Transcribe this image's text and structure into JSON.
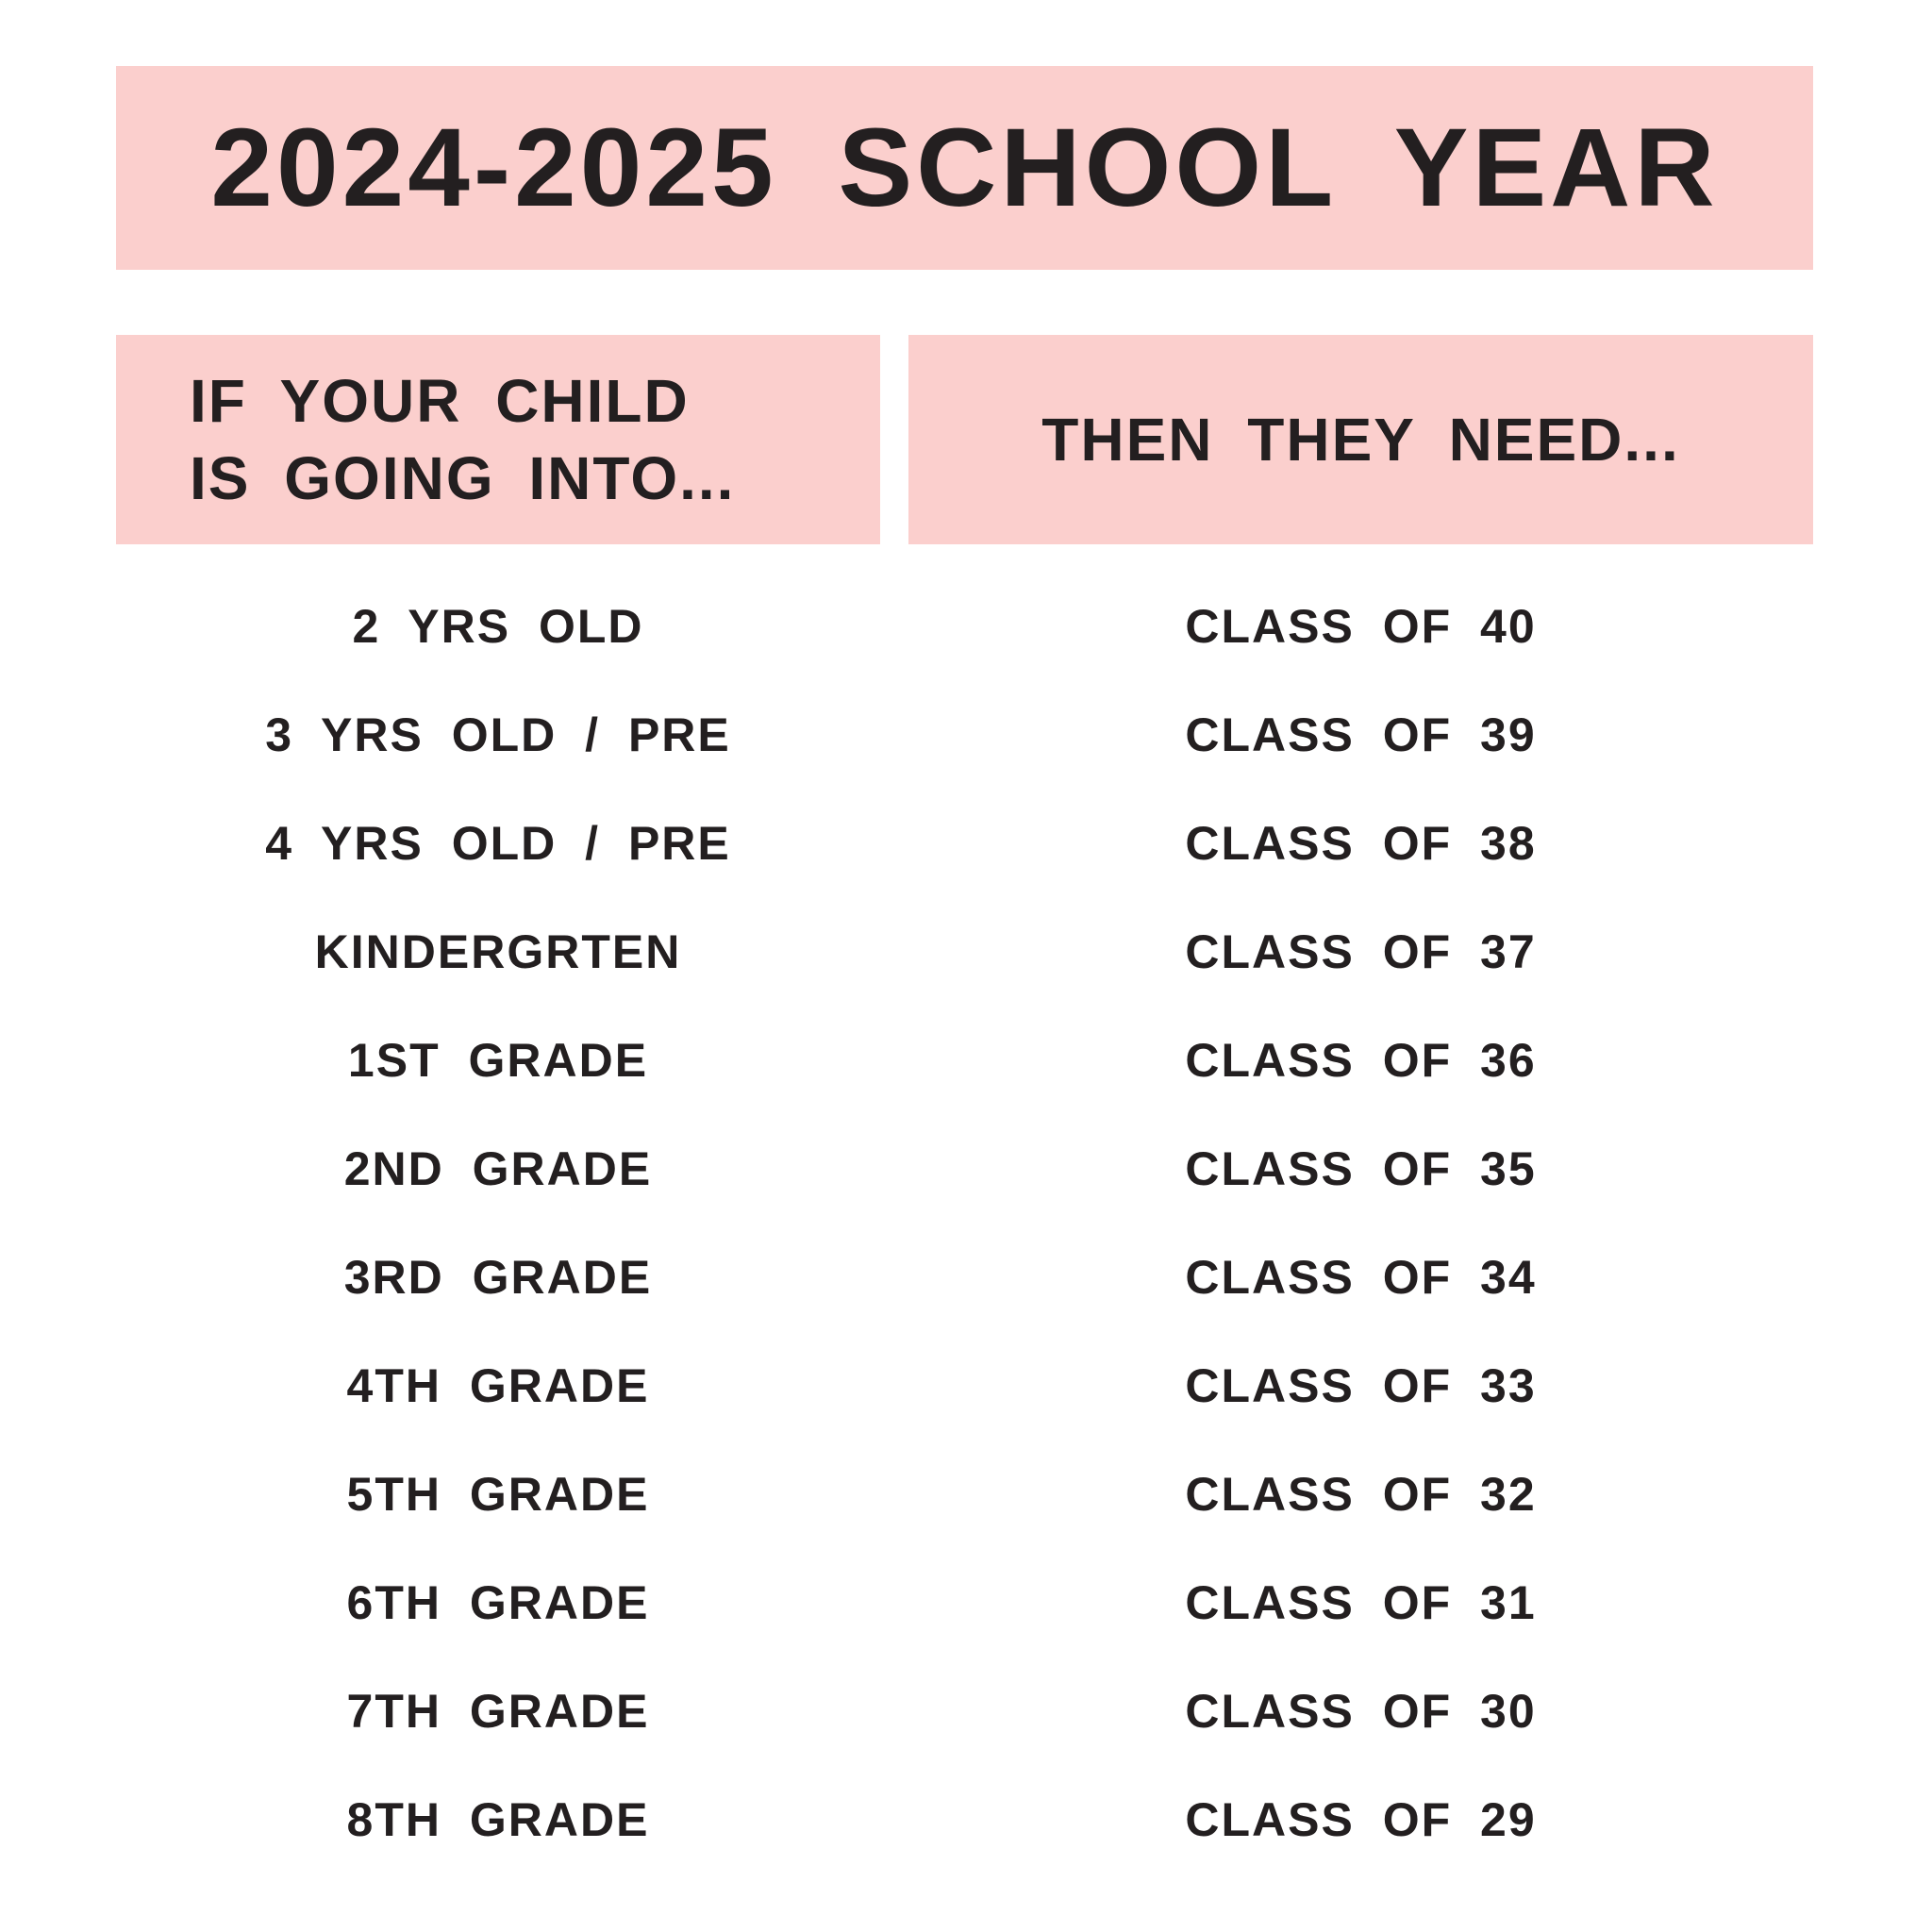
{
  "page": {
    "background": "#ffffff",
    "banner_color": "#fbcfcd",
    "text_color": "#231f20"
  },
  "title_banner": {
    "text": "2024-2025 SCHOOL YEAR"
  },
  "table": {
    "left_header": {
      "line1": "IF YOUR CHILD",
      "line2": "IS GOING INTO..."
    },
    "right_header": {
      "text": "THEN THEY NEED..."
    },
    "rows": [
      {
        "grade": "2 YRS OLD",
        "class": "CLASS OF 40"
      },
      {
        "grade": "3 YRS OLD / PRE",
        "class": "CLASS OF 39"
      },
      {
        "grade": "4 YRS OLD / PRE",
        "class": "CLASS OF 38"
      },
      {
        "grade": "KINDERGRTEN",
        "class": "CLASS OF 37"
      },
      {
        "grade": "1ST GRADE",
        "class": "CLASS OF 36"
      },
      {
        "grade": "2ND GRADE",
        "class": "CLASS OF 35"
      },
      {
        "grade": "3RD GRADE",
        "class": "CLASS OF 34"
      },
      {
        "grade": "4TH GRADE",
        "class": "CLASS OF 33"
      },
      {
        "grade": "5TH GRADE",
        "class": "CLASS OF 32"
      },
      {
        "grade": "6TH GRADE",
        "class": "CLASS OF 31"
      },
      {
        "grade": "7TH GRADE",
        "class": "CLASS OF 30"
      },
      {
        "grade": "8TH GRADE",
        "class": "CLASS OF 29"
      }
    ]
  }
}
